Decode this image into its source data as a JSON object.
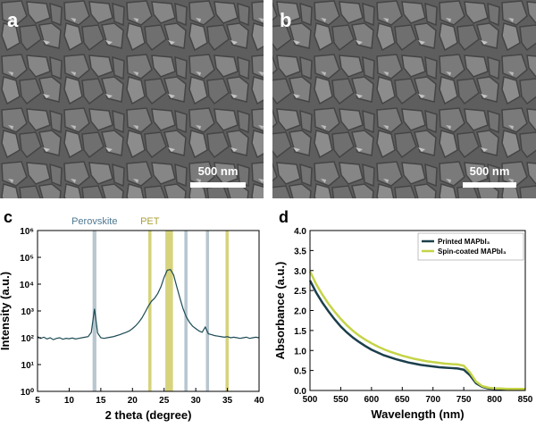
{
  "panels": [
    {
      "label": "a",
      "scale_bar": "500 nm"
    },
    {
      "label": "b",
      "scale_bar": "500 nm"
    }
  ],
  "chart_data": [
    {
      "type": "line",
      "panel_label": "c",
      "xlabel": "2 theta (degree)",
      "ylabel": "Intensity (a.u.)",
      "yscale": "log",
      "color": "#1d4b55",
      "xlim": [
        5,
        40
      ],
      "xticks": [
        5,
        10,
        15,
        20,
        25,
        30,
        35,
        40
      ],
      "ylim": [
        1,
        1000000
      ],
      "yticks": [
        {
          "value": 1,
          "label": "10⁰"
        },
        {
          "value": 10,
          "label": "10¹"
        },
        {
          "value": 100,
          "label": "10²"
        },
        {
          "value": 1000,
          "label": "10³"
        },
        {
          "value": 10000,
          "label": "10⁴"
        },
        {
          "value": 100000,
          "label": "10⁵"
        },
        {
          "value": 1000000,
          "label": "10⁶"
        }
      ],
      "band_groups": [
        {
          "label": "Perovskite",
          "color": "#b7c6cf",
          "ranges": [
            [
              13.7,
              14.3
            ],
            [
              28.2,
              28.7
            ],
            [
              31.6,
              32.1
            ]
          ]
        },
        {
          "label": "PET",
          "color": "#d6d37c",
          "ranges": [
            [
              22.5,
              23.0
            ],
            [
              25.2,
              26.4
            ],
            [
              34.7,
              35.2
            ]
          ]
        }
      ],
      "x": [
        5,
        5.5,
        6,
        6.5,
        7,
        7.5,
        8,
        8.5,
        9,
        9.5,
        10,
        10.5,
        11,
        11.5,
        12,
        12.5,
        13,
        13.5,
        14,
        14.5,
        15,
        15.5,
        16,
        16.5,
        17,
        17.5,
        18,
        18.5,
        19,
        19.5,
        20,
        20.5,
        21,
        21.5,
        22,
        22.5,
        23,
        23.5,
        24,
        24.5,
        25,
        25.5,
        26,
        26.5,
        27,
        27.5,
        28,
        28.5,
        29,
        29.5,
        30,
        30.5,
        31,
        31.5,
        32,
        32.5,
        33,
        33.5,
        34,
        34.5,
        35,
        35.5,
        36,
        36.5,
        37,
        37.5,
        38,
        38.5,
        39,
        39.5,
        40
      ],
      "values": [
        110,
        95,
        105,
        90,
        100,
        85,
        95,
        100,
        88,
        95,
        92,
        98,
        90,
        95,
        100,
        105,
        110,
        160,
        1200,
        150,
        100,
        95,
        100,
        105,
        110,
        120,
        130,
        145,
        160,
        180,
        220,
        280,
        380,
        550,
        900,
        1500,
        2300,
        3000,
        4500,
        8000,
        18000,
        33000,
        35000,
        22000,
        8000,
        3000,
        1200,
        600,
        380,
        270,
        220,
        180,
        160,
        250,
        140,
        130,
        120,
        115,
        110,
        105,
        110,
        100,
        105,
        100,
        95,
        100,
        105,
        95,
        100,
        105,
        100
      ]
    },
    {
      "type": "line",
      "panel_label": "d",
      "xlabel": "Wavelength (nm)",
      "ylabel": "Absorbance (a.u.)",
      "xlim": [
        500,
        850
      ],
      "xticks": [
        500,
        550,
        600,
        650,
        700,
        750,
        800,
        850
      ],
      "ylim": [
        0,
        4
      ],
      "yticks": [
        {
          "value": 0,
          "label": "0.0"
        },
        {
          "value": 0.5,
          "label": "0.5"
        },
        {
          "value": 1,
          "label": "1.0"
        },
        {
          "value": 1.5,
          "label": "1.5"
        },
        {
          "value": 2,
          "label": "2.0"
        },
        {
          "value": 2.5,
          "label": "2.5"
        },
        {
          "value": 3,
          "label": "3.0"
        },
        {
          "value": 3.5,
          "label": "3.5"
        },
        {
          "value": 4,
          "label": "4.0"
        }
      ],
      "legend": "upper right",
      "x": [
        500,
        510,
        520,
        530,
        540,
        550,
        560,
        570,
        580,
        590,
        600,
        610,
        620,
        630,
        640,
        650,
        660,
        670,
        680,
        690,
        700,
        710,
        720,
        730,
        740,
        750,
        760,
        770,
        780,
        790,
        800,
        810,
        820,
        830,
        840,
        850
      ],
      "series": [
        {
          "name": "Printed MAPbI₃",
          "color": "#1b3f4c",
          "values": [
            2.75,
            2.45,
            2.2,
            1.98,
            1.78,
            1.6,
            1.45,
            1.32,
            1.21,
            1.11,
            1.02,
            0.95,
            0.88,
            0.83,
            0.78,
            0.74,
            0.7,
            0.67,
            0.64,
            0.62,
            0.6,
            0.58,
            0.57,
            0.56,
            0.55,
            0.52,
            0.38,
            0.18,
            0.09,
            0.05,
            0.04,
            0.03,
            0.03,
            0.03,
            0.03,
            0.03
          ]
        },
        {
          "name": "Spin-coated MAPbI₃",
          "color": "#c5d447",
          "values": [
            2.98,
            2.66,
            2.4,
            2.17,
            1.97,
            1.79,
            1.63,
            1.49,
            1.37,
            1.27,
            1.18,
            1.1,
            1.03,
            0.97,
            0.92,
            0.87,
            0.83,
            0.79,
            0.76,
            0.73,
            0.71,
            0.69,
            0.67,
            0.66,
            0.65,
            0.62,
            0.45,
            0.22,
            0.11,
            0.07,
            0.05,
            0.05,
            0.04,
            0.04,
            0.04,
            0.04
          ]
        }
      ]
    }
  ]
}
